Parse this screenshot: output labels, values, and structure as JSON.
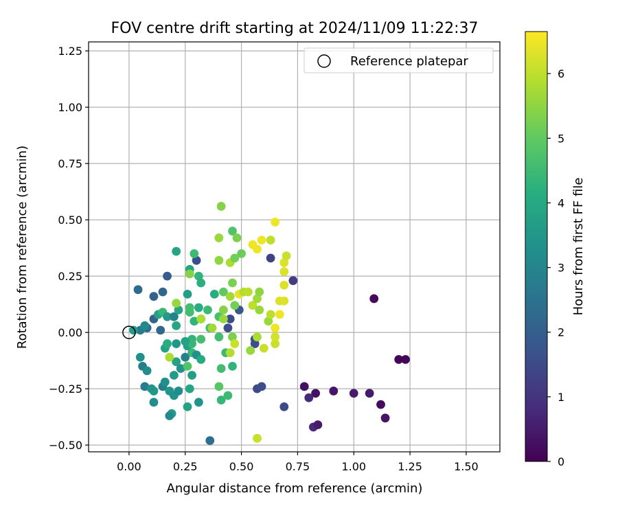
{
  "chart_data": {
    "type": "scatter",
    "title": "FOV centre drift starting at 2024/11/09 11:22:37",
    "xlabel": "Angular distance from reference (arcmin)",
    "ylabel": "Rotation from reference (arcmin)",
    "xlim": [
      -0.18,
      1.65
    ],
    "ylim": [
      -0.53,
      1.29
    ],
    "x_ticks": [
      "0.00",
      "0.25",
      "0.50",
      "0.75",
      "1.00",
      "1.25",
      "1.50"
    ],
    "y_ticks": [
      "−0.50",
      "−0.25",
      "0.00",
      "0.25",
      "0.50",
      "0.75",
      "1.00",
      "1.25"
    ],
    "grid": true,
    "legend": {
      "placement": "top-right",
      "entries": [
        {
          "label": "Reference platepar",
          "marker": "open-circle",
          "x": 0.0,
          "y": 0.0
        }
      ]
    },
    "colorbar": {
      "label": "Hours from first FF file",
      "colormap": "viridis",
      "range": [
        0,
        6.65
      ],
      "ticks": [
        "0",
        "1",
        "2",
        "3",
        "4",
        "5",
        "6"
      ]
    },
    "points": [
      {
        "x": 1.09,
        "y": 0.15,
        "hours": 0.2
      },
      {
        "x": 1.2,
        "y": -0.12,
        "hours": 0.1
      },
      {
        "x": 1.23,
        "y": -0.12,
        "hours": 0.1
      },
      {
        "x": 1.12,
        "y": -0.32,
        "hours": 0.2
      },
      {
        "x": 1.14,
        "y": -0.38,
        "hours": 0.4
      },
      {
        "x": 1.07,
        "y": -0.27,
        "hours": 0.5
      },
      {
        "x": 1.0,
        "y": -0.27,
        "hours": 0.5
      },
      {
        "x": 0.91,
        "y": -0.26,
        "hours": 0.4
      },
      {
        "x": 0.83,
        "y": -0.27,
        "hours": 0.3
      },
      {
        "x": 0.78,
        "y": -0.24,
        "hours": 0.3
      },
      {
        "x": 0.8,
        "y": -0.29,
        "hours": 0.8
      },
      {
        "x": 0.82,
        "y": -0.42,
        "hours": 0.8
      },
      {
        "x": 0.84,
        "y": -0.41,
        "hours": 0.5
      },
      {
        "x": 0.69,
        "y": -0.33,
        "hours": 1.5
      },
      {
        "x": 0.73,
        "y": 0.23,
        "hours": 1.2
      },
      {
        "x": 0.63,
        "y": 0.33,
        "hours": 1.3
      },
      {
        "x": 0.36,
        "y": -0.48,
        "hours": 2.4
      },
      {
        "x": 0.3,
        "y": 0.32,
        "hours": 1.6
      },
      {
        "x": 0.57,
        "y": -0.25,
        "hours": 1.5
      },
      {
        "x": 0.59,
        "y": -0.24,
        "hours": 1.6
      },
      {
        "x": 0.56,
        "y": -0.03,
        "hours": 1.6
      },
      {
        "x": 0.56,
        "y": -0.05,
        "hours": 1.6
      },
      {
        "x": 0.49,
        "y": 0.1,
        "hours": 1.8
      },
      {
        "x": 0.45,
        "y": 0.06,
        "hours": 1.5
      },
      {
        "x": 0.44,
        "y": 0.02,
        "hours": 1.6
      },
      {
        "x": 0.17,
        "y": 0.25,
        "hours": 1.9
      },
      {
        "x": 0.15,
        "y": 0.18,
        "hours": 2.2
      },
      {
        "x": 0.11,
        "y": 0.16,
        "hours": 2.1
      },
      {
        "x": 0.04,
        "y": 0.19,
        "hours": 2.3
      },
      {
        "x": 0.08,
        "y": 0.02,
        "hours": 2.4
      },
      {
        "x": 0.05,
        "y": 0.01,
        "hours": 2.7
      },
      {
        "x": 0.02,
        "y": 0.01,
        "hours": 3.6
      },
      {
        "x": 0.14,
        "y": 0.01,
        "hours": 2.2
      },
      {
        "x": 0.11,
        "y": 0.06,
        "hours": 2.1
      },
      {
        "x": 0.07,
        "y": 0.03,
        "hours": 3.1
      },
      {
        "x": 0.05,
        "y": -0.11,
        "hours": 3.3
      },
      {
        "x": 0.06,
        "y": -0.15,
        "hours": 2.8
      },
      {
        "x": 0.08,
        "y": -0.17,
        "hours": 3.2
      },
      {
        "x": 0.07,
        "y": -0.24,
        "hours": 2.7
      },
      {
        "x": 0.1,
        "y": -0.25,
        "hours": 3.4
      },
      {
        "x": 0.11,
        "y": -0.26,
        "hours": 3.5
      },
      {
        "x": 0.11,
        "y": -0.31,
        "hours": 3.2
      },
      {
        "x": 0.15,
        "y": -0.24,
        "hours": 2.8
      },
      {
        "x": 0.16,
        "y": -0.22,
        "hours": 3.3
      },
      {
        "x": 0.18,
        "y": -0.26,
        "hours": 3.5
      },
      {
        "x": 0.2,
        "y": -0.28,
        "hours": 3.4
      },
      {
        "x": 0.19,
        "y": -0.36,
        "hours": 3.6
      },
      {
        "x": 0.18,
        "y": -0.37,
        "hours": 3.1
      },
      {
        "x": 0.22,
        "y": -0.26,
        "hours": 3.2
      },
      {
        "x": 0.26,
        "y": -0.33,
        "hours": 3.8
      },
      {
        "x": 0.27,
        "y": -0.25,
        "hours": 3.9
      },
      {
        "x": 0.31,
        "y": -0.31,
        "hours": 3.4
      },
      {
        "x": 0.2,
        "y": -0.19,
        "hours": 3.6
      },
      {
        "x": 0.21,
        "y": -0.13,
        "hours": 3.8
      },
      {
        "x": 0.23,
        "y": -0.16,
        "hours": 3.4
      },
      {
        "x": 0.25,
        "y": -0.11,
        "hours": 2.9
      },
      {
        "x": 0.16,
        "y": -0.07,
        "hours": 3.8
      },
      {
        "x": 0.17,
        "y": -0.05,
        "hours": 4.1
      },
      {
        "x": 0.21,
        "y": -0.05,
        "hours": 3.5
      },
      {
        "x": 0.26,
        "y": -0.06,
        "hours": 3.7
      },
      {
        "x": 0.28,
        "y": -0.09,
        "hours": 4.4
      },
      {
        "x": 0.3,
        "y": -0.1,
        "hours": 3.3
      },
      {
        "x": 0.32,
        "y": -0.12,
        "hours": 4.0
      },
      {
        "x": 0.28,
        "y": -0.19,
        "hours": 3.7
      },
      {
        "x": 0.26,
        "y": -0.15,
        "hours": 4.8
      },
      {
        "x": 0.18,
        "y": -0.11,
        "hours": 5.8
      },
      {
        "x": 0.13,
        "y": 0.08,
        "hours": 3.8
      },
      {
        "x": 0.15,
        "y": 0.09,
        "hours": 4.4
      },
      {
        "x": 0.17,
        "y": 0.07,
        "hours": 3.6
      },
      {
        "x": 0.2,
        "y": 0.07,
        "hours": 2.9
      },
      {
        "x": 0.21,
        "y": 0.03,
        "hours": 3.9
      },
      {
        "x": 0.22,
        "y": 0.1,
        "hours": 3.9
      },
      {
        "x": 0.21,
        "y": 0.13,
        "hours": 5.6
      },
      {
        "x": 0.26,
        "y": 0.17,
        "hours": 3.7
      },
      {
        "x": 0.27,
        "y": 0.11,
        "hours": 4.6
      },
      {
        "x": 0.27,
        "y": 0.09,
        "hours": 4.6
      },
      {
        "x": 0.29,
        "y": 0.05,
        "hours": 4.3
      },
      {
        "x": 0.31,
        "y": 0.11,
        "hours": 4.1
      },
      {
        "x": 0.32,
        "y": 0.06,
        "hours": 4.7
      },
      {
        "x": 0.32,
        "y": 0.06,
        "hours": 5.8
      },
      {
        "x": 0.35,
        "y": 0.1,
        "hours": 4.5
      },
      {
        "x": 0.36,
        "y": 0.02,
        "hours": 4.6
      },
      {
        "x": 0.37,
        "y": 0.02,
        "hours": 5.7
      },
      {
        "x": 0.32,
        "y": -0.03,
        "hours": 4.6
      },
      {
        "x": 0.28,
        "y": -0.03,
        "hours": 4.3
      },
      {
        "x": 0.28,
        "y": -0.05,
        "hours": 4.4
      },
      {
        "x": 0.25,
        "y": -0.04,
        "hours": 3.8
      },
      {
        "x": 0.21,
        "y": 0.36,
        "hours": 3.9
      },
      {
        "x": 0.29,
        "y": 0.35,
        "hours": 4.5
      },
      {
        "x": 0.27,
        "y": 0.28,
        "hours": 3.9
      },
      {
        "x": 0.27,
        "y": 0.26,
        "hours": 5.4
      },
      {
        "x": 0.31,
        "y": 0.25,
        "hours": 4.3
      },
      {
        "x": 0.32,
        "y": 0.22,
        "hours": 4.2
      },
      {
        "x": 0.38,
        "y": 0.17,
        "hours": 4.1
      },
      {
        "x": 0.4,
        "y": 0.07,
        "hours": 4.7
      },
      {
        "x": 0.4,
        "y": -0.02,
        "hours": 4.6
      },
      {
        "x": 0.41,
        "y": -0.16,
        "hours": 4.6
      },
      {
        "x": 0.4,
        "y": -0.24,
        "hours": 4.9
      },
      {
        "x": 0.41,
        "y": -0.3,
        "hours": 4.4
      },
      {
        "x": 0.44,
        "y": -0.28,
        "hours": 4.5
      },
      {
        "x": 0.46,
        "y": -0.15,
        "hours": 4.3
      },
      {
        "x": 0.43,
        "y": -0.09,
        "hours": 4.5
      },
      {
        "x": 0.45,
        "y": -0.09,
        "hours": 5.9
      },
      {
        "x": 0.46,
        "y": -0.02,
        "hours": 5.3
      },
      {
        "x": 0.47,
        "y": -0.05,
        "hours": 6.1
      },
      {
        "x": 0.42,
        "y": 0.1,
        "hours": 5.4
      },
      {
        "x": 0.42,
        "y": 0.06,
        "hours": 5.6
      },
      {
        "x": 0.42,
        "y": 0.18,
        "hours": 5.0
      },
      {
        "x": 0.45,
        "y": 0.16,
        "hours": 5.7
      },
      {
        "x": 0.46,
        "y": 0.22,
        "hours": 5.3
      },
      {
        "x": 0.45,
        "y": 0.31,
        "hours": 5.8
      },
      {
        "x": 0.47,
        "y": 0.33,
        "hours": 5.2
      },
      {
        "x": 0.46,
        "y": 0.45,
        "hours": 4.8
      },
      {
        "x": 0.48,
        "y": 0.42,
        "hours": 5.3
      },
      {
        "x": 0.4,
        "y": 0.32,
        "hours": 5.5
      },
      {
        "x": 0.4,
        "y": 0.42,
        "hours": 5.6
      },
      {
        "x": 0.41,
        "y": 0.56,
        "hours": 5.4
      },
      {
        "x": 0.5,
        "y": 0.35,
        "hours": 5.1
      },
      {
        "x": 0.47,
        "y": 0.12,
        "hours": 5.2
      },
      {
        "x": 0.49,
        "y": 0.17,
        "hours": 6.4
      },
      {
        "x": 0.51,
        "y": 0.18,
        "hours": 5.9
      },
      {
        "x": 0.53,
        "y": 0.18,
        "hours": 6.0
      },
      {
        "x": 0.54,
        "y": -0.08,
        "hours": 5.6
      },
      {
        "x": 0.57,
        "y": -0.02,
        "hours": 5.8
      },
      {
        "x": 0.55,
        "y": 0.12,
        "hours": 6.0
      },
      {
        "x": 0.57,
        "y": 0.15,
        "hours": 5.7
      },
      {
        "x": 0.58,
        "y": 0.18,
        "hours": 5.5
      },
      {
        "x": 0.58,
        "y": 0.1,
        "hours": 5.6
      },
      {
        "x": 0.6,
        "y": -0.07,
        "hours": 6.1
      },
      {
        "x": 0.62,
        "y": 0.05,
        "hours": 5.6
      },
      {
        "x": 0.63,
        "y": 0.08,
        "hours": 6.0
      },
      {
        "x": 0.65,
        "y": -0.05,
        "hours": 6.1
      },
      {
        "x": 0.65,
        "y": -0.02,
        "hours": 6.2
      },
      {
        "x": 0.65,
        "y": 0.02,
        "hours": 6.5
      },
      {
        "x": 0.67,
        "y": 0.08,
        "hours": 6.5
      },
      {
        "x": 0.67,
        "y": 0.14,
        "hours": 6.3
      },
      {
        "x": 0.69,
        "y": 0.14,
        "hours": 6.3
      },
      {
        "x": 0.69,
        "y": 0.21,
        "hours": 6.3
      },
      {
        "x": 0.69,
        "y": 0.27,
        "hours": 6.3
      },
      {
        "x": 0.69,
        "y": 0.31,
        "hours": 6.3
      },
      {
        "x": 0.7,
        "y": 0.34,
        "hours": 6.1
      },
      {
        "x": 0.55,
        "y": 0.39,
        "hours": 6.5
      },
      {
        "x": 0.57,
        "y": 0.37,
        "hours": 6.5
      },
      {
        "x": 0.59,
        "y": 0.41,
        "hours": 6.5
      },
      {
        "x": 0.63,
        "y": 0.41,
        "hours": 6.0
      },
      {
        "x": 0.65,
        "y": 0.49,
        "hours": 6.5
      },
      {
        "x": 0.57,
        "y": -0.47,
        "hours": 6.1
      }
    ]
  }
}
